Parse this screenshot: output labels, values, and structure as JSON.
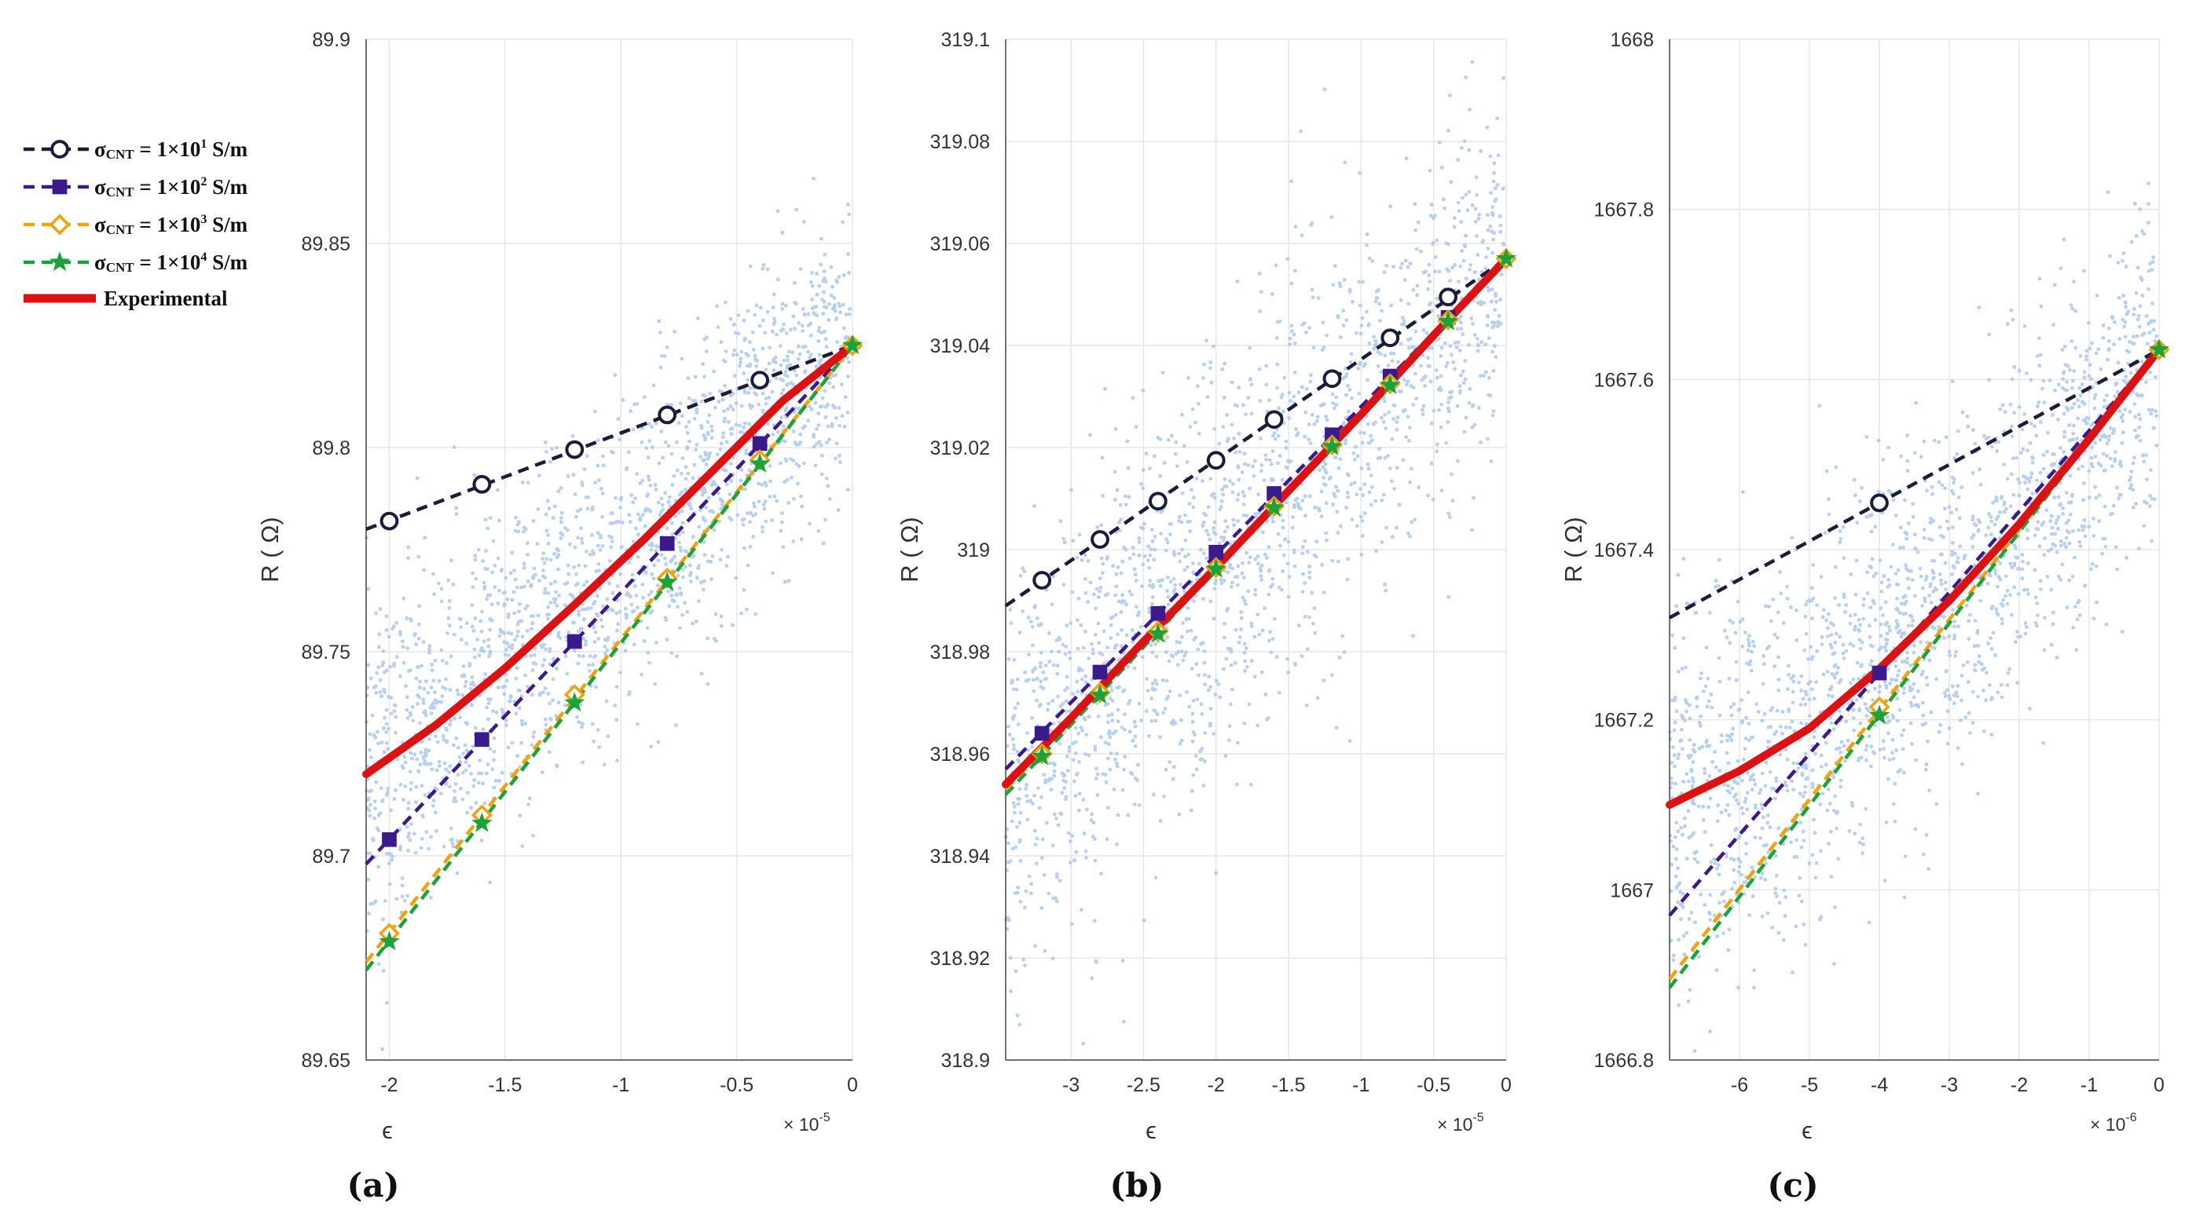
{
  "legend": {
    "entries": [
      {
        "symbol": "σ",
        "sub": "CNT",
        "text": " = 1×10",
        "sup": "1",
        "unit": " S/m",
        "color": "#1b1b3a",
        "marker": "circle-open"
      },
      {
        "symbol": "σ",
        "sub": "CNT",
        "text": " = 1×10",
        "sup": "2",
        "unit": " S/m",
        "color": "#3a1a8c",
        "marker": "square"
      },
      {
        "symbol": "σ",
        "sub": "CNT",
        "text": " = 1×10",
        "sup": "3",
        "unit": " S/m",
        "color": "#f5a20a",
        "marker": "diamond-open"
      },
      {
        "symbol": "σ",
        "sub": "CNT",
        "text": " = 1×10",
        "sup": "4",
        "unit": " S/m",
        "color": "#1aa33a",
        "marker": "star"
      }
    ],
    "experimental": {
      "label": "Experimental",
      "color": "#dd1111"
    }
  },
  "scatter_color": "#a9c8ef",
  "chart_data": [
    {
      "type": "line",
      "panel_label": "(a)",
      "ylabel": "R ( Ω)",
      "xlabel": "ϵ",
      "x_multiplier": {
        "base": "× 10",
        "exp": "-5"
      },
      "xlim": [
        -2.1,
        0
      ],
      "ylim": [
        89.65,
        89.9
      ],
      "xticks": [
        -2,
        -1.5,
        -1,
        -0.5,
        0
      ],
      "xtick_labels": [
        "-2",
        "-1.5",
        "-1",
        "-0.5",
        "0"
      ],
      "yticks": [
        89.65,
        89.7,
        89.75,
        89.8,
        89.85,
        89.9
      ],
      "ytick_labels": [
        "89.65",
        "89.7",
        "89.75",
        "89.8",
        "89.85",
        "89.9"
      ],
      "grid": true,
      "series": [
        {
          "line": {
            "x": [
              -2.1,
              0
            ],
            "y": [
              89.78,
              89.825
            ]
          },
          "markers": {
            "x": [
              -2,
              -1.6,
              -1.2,
              -0.8,
              -0.4
            ],
            "y": [
              89.782,
              89.791,
              89.7995,
              89.808,
              89.8165
            ]
          }
        },
        {
          "line": {
            "x": [
              -2.1,
              0
            ],
            "y": [
              89.698,
              89.825
            ]
          },
          "markers": {
            "x": [
              -2,
              -1.6,
              -1.2,
              -0.8,
              -0.4
            ],
            "y": [
              89.704,
              89.7285,
              89.7525,
              89.7765,
              89.801
            ]
          }
        },
        {
          "line": {
            "x": [
              -2.1,
              0
            ],
            "y": [
              89.674,
              89.825
            ]
          },
          "markers": {
            "x": [
              -2,
              -1.6,
              -1.2,
              -0.8,
              -0.4
            ],
            "y": [
              89.681,
              89.71,
              89.7395,
              89.768,
              89.797
            ]
          }
        },
        {
          "line": {
            "x": [
              -2.1,
              0
            ],
            "y": [
              89.672,
              89.825
            ]
          },
          "markers": {
            "x": [
              -2,
              -1.6,
              -1.2,
              -0.8,
              -0.4
            ],
            "y": [
              89.679,
              89.708,
              89.7375,
              89.767,
              89.796
            ]
          }
        }
      ],
      "experimental": {
        "x": [
          -2.1,
          -1.8,
          -1.5,
          -1.2,
          -0.9,
          -0.6,
          -0.3,
          0
        ],
        "y": [
          89.72,
          89.732,
          89.746,
          89.7615,
          89.7775,
          89.7945,
          89.8115,
          89.825
        ]
      }
    },
    {
      "type": "line",
      "panel_label": "(b)",
      "ylabel": "R ( Ω)",
      "xlabel": "ϵ",
      "x_multiplier": {
        "base": "× 10",
        "exp": "-5"
      },
      "xlim": [
        -3.45,
        0
      ],
      "ylim": [
        318.9,
        319.1
      ],
      "xticks": [
        -3,
        -2.5,
        -2,
        -1.5,
        -1,
        -0.5,
        0
      ],
      "xtick_labels": [
        "-3",
        "-2.5",
        "-2",
        "-1.5",
        "-1",
        "-0.5",
        "0"
      ],
      "yticks": [
        318.9,
        318.92,
        318.94,
        318.96,
        318.98,
        319,
        319.02,
        319.04,
        319.06,
        319.08,
        319.1
      ],
      "ytick_labels": [
        "318.9",
        "318.92",
        "318.94",
        "318.96",
        "318.98",
        "319",
        "319.02",
        "319.04",
        "319.06",
        "319.08",
        "319.1"
      ],
      "grid": true,
      "series": [
        {
          "line": {
            "x": [
              -3.45,
              0
            ],
            "y": [
              318.989,
              319.057
            ]
          },
          "markers": {
            "x": [
              -3.2,
              -2.8,
              -2.4,
              -2,
              -1.6,
              -1.2,
              -0.8,
              -0.4
            ],
            "y": [
              318.994,
              319.002,
              319.0095,
              319.0175,
              319.0255,
              319.0335,
              319.0415,
              319.0495
            ]
          }
        },
        {
          "line": {
            "x": [
              -3.45,
              0
            ],
            "y": [
              318.957,
              319.057
            ]
          },
          "markers": {
            "x": [
              -3.2,
              -2.8,
              -2.4,
              -2,
              -1.6,
              -1.2,
              -0.8,
              -0.4
            ],
            "y": [
              318.964,
              318.976,
              318.9875,
              318.9995,
              319.011,
              319.0225,
              319.034,
              319.0455
            ]
          }
        },
        {
          "line": {
            "x": [
              -3.45,
              0
            ],
            "y": [
              318.953,
              319.057
            ]
          },
          "markers": {
            "x": [
              -3.2,
              -2.8,
              -2.4,
              -2,
              -1.6,
              -1.2,
              -0.8,
              -0.4
            ],
            "y": [
              318.96,
              318.972,
              318.984,
              318.9965,
              319.0085,
              319.0205,
              319.0325,
              319.045
            ]
          }
        },
        {
          "line": {
            "x": [
              -3.45,
              0
            ],
            "y": [
              318.952,
              319.057
            ]
          },
          "markers": {
            "x": [
              -3.2,
              -2.8,
              -2.4,
              -2,
              -1.6,
              -1.2,
              -0.8,
              -0.4
            ],
            "y": [
              318.9595,
              318.9715,
              318.9835,
              318.9962,
              319.0082,
              319.0202,
              319.0322,
              319.0447
            ]
          }
        }
      ],
      "experimental": {
        "x": [
          -3.45,
          -3,
          -2.5,
          -2,
          -1.5,
          -1,
          -0.5,
          0
        ],
        "y": [
          318.954,
          318.967,
          318.982,
          318.9965,
          319.0115,
          319.0265,
          319.042,
          319.057
        ]
      }
    },
    {
      "type": "line",
      "panel_label": "(c)",
      "ylabel": "R ( Ω)",
      "xlabel": "ϵ",
      "x_multiplier": {
        "base": "× 10",
        "exp": "-6"
      },
      "xlim": [
        -7,
        0
      ],
      "ylim": [
        1666.8,
        1668
      ],
      "xticks": [
        -6,
        -5,
        -4,
        -3,
        -2,
        -1,
        0
      ],
      "xtick_labels": [
        "-6",
        "-5",
        "-4",
        "-3",
        "-2",
        "-1",
        "0"
      ],
      "yticks": [
        1666.8,
        1667,
        1667.2,
        1667.4,
        1667.6,
        1667.8,
        1668
      ],
      "ytick_labels": [
        "1666.8",
        "1667",
        "1667.2",
        "1667.4",
        "1667.6",
        "1667.8",
        "1668"
      ],
      "grid": true,
      "series": [
        {
          "line": {
            "x": [
              -7,
              0
            ],
            "y": [
              1667.32,
              1667.635
            ]
          },
          "markers": {
            "x": [
              -4
            ],
            "y": [
              1667.455
            ]
          }
        },
        {
          "line": {
            "x": [
              -7,
              0
            ],
            "y": [
              1666.97,
              1667.635
            ]
          },
          "markers": {
            "x": [
              -4
            ],
            "y": [
              1667.255
            ]
          }
        },
        {
          "line": {
            "x": [
              -7,
              0
            ],
            "y": [
              1666.895,
              1667.635
            ]
          },
          "markers": {
            "x": [
              -4
            ],
            "y": [
              1667.215
            ]
          }
        },
        {
          "line": {
            "x": [
              -7,
              0
            ],
            "y": [
              1666.885,
              1667.635
            ]
          },
          "markers": {
            "x": [
              -4
            ],
            "y": [
              1667.205
            ]
          }
        }
      ],
      "experimental": {
        "x": [
          -7,
          -6,
          -5,
          -4,
          -3,
          -2,
          -1,
          0
        ],
        "y": [
          1667.1,
          1667.14,
          1667.19,
          1667.26,
          1667.34,
          1667.43,
          1667.53,
          1667.635
        ]
      }
    }
  ]
}
